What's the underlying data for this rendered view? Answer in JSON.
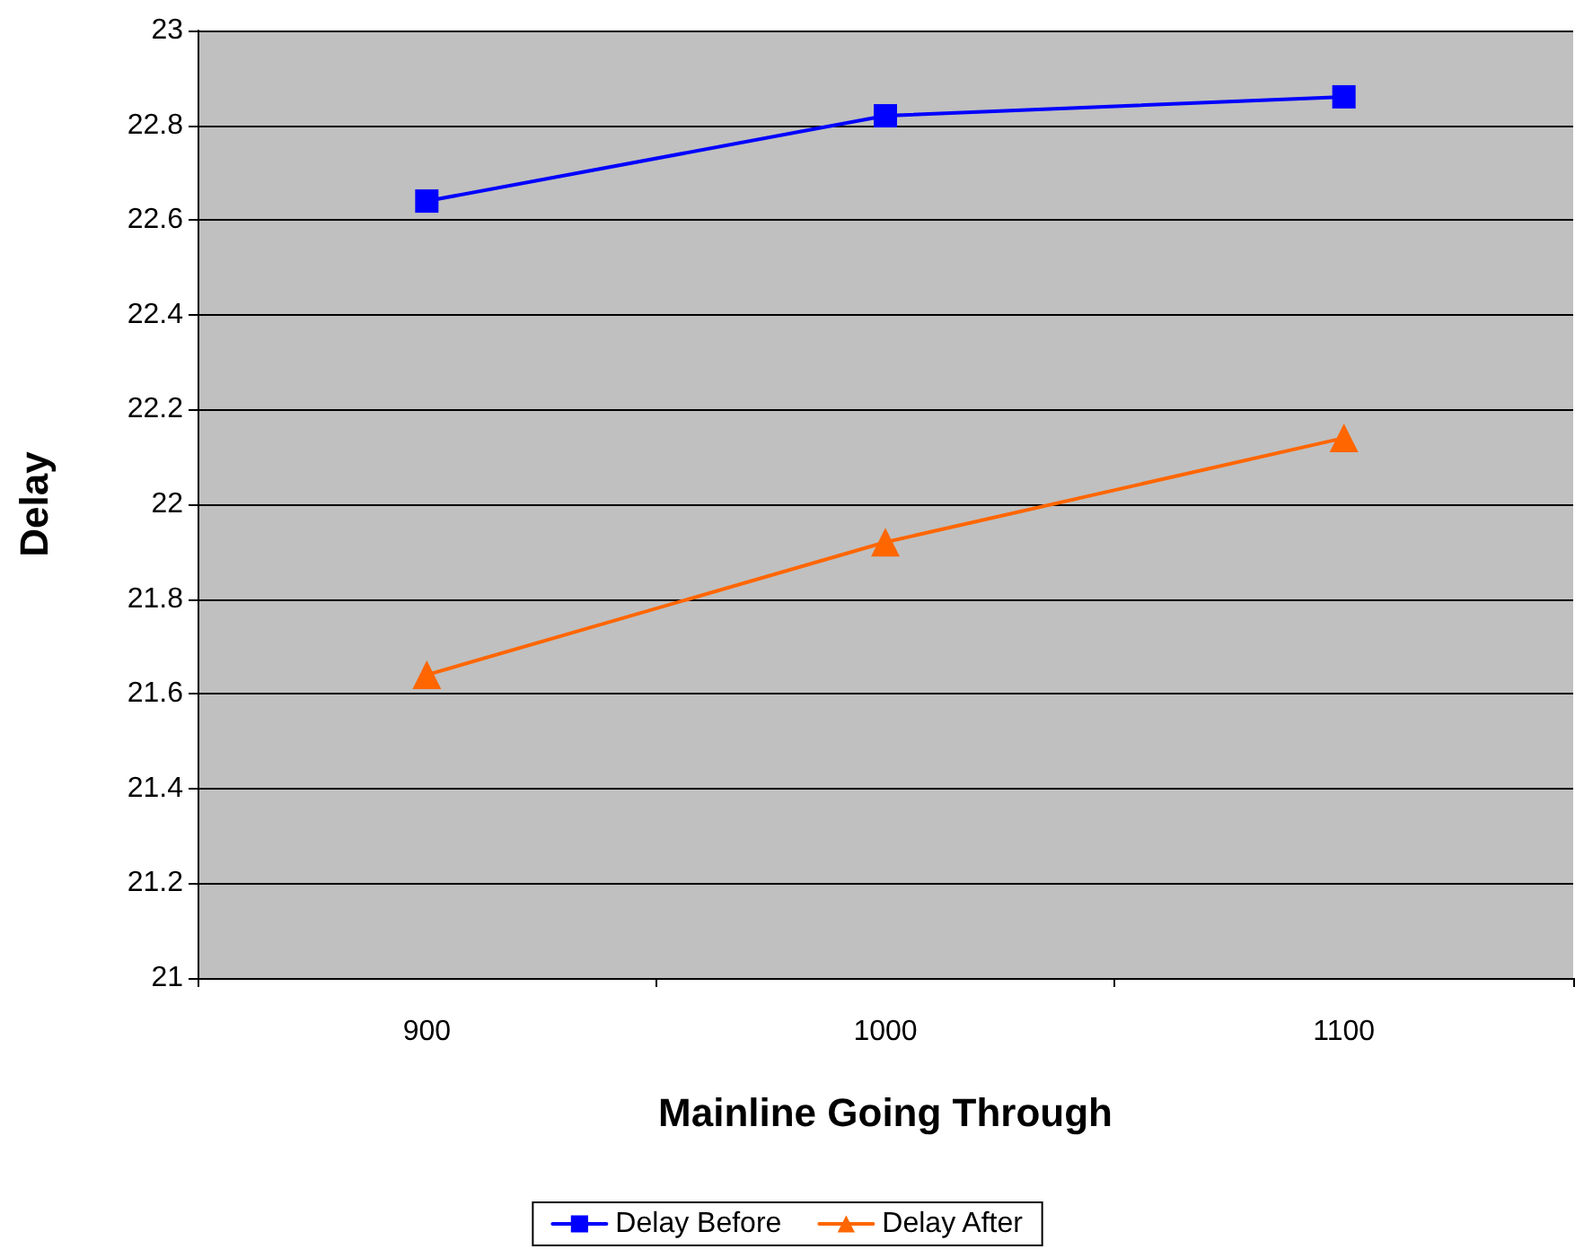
{
  "chart_data": {
    "type": "line",
    "xlabel": "Mainline Going Through",
    "ylabel": "Delay",
    "categories": [
      "900",
      "1000",
      "1100"
    ],
    "series": [
      {
        "name": "Delay Before",
        "color": "#0000ff",
        "marker": "square",
        "values": [
          22.64,
          22.82,
          22.86
        ]
      },
      {
        "name": "Delay After",
        "color": "#ff6600",
        "marker": "triangle",
        "values": [
          21.64,
          21.92,
          22.14
        ]
      }
    ],
    "ylim": [
      21,
      23
    ],
    "yticks": [
      21,
      21.2,
      21.4,
      21.6,
      21.8,
      22,
      22.2,
      22.4,
      22.6,
      22.8,
      23
    ],
    "grid": "y",
    "legend": "bottom",
    "line_style": "solid"
  }
}
